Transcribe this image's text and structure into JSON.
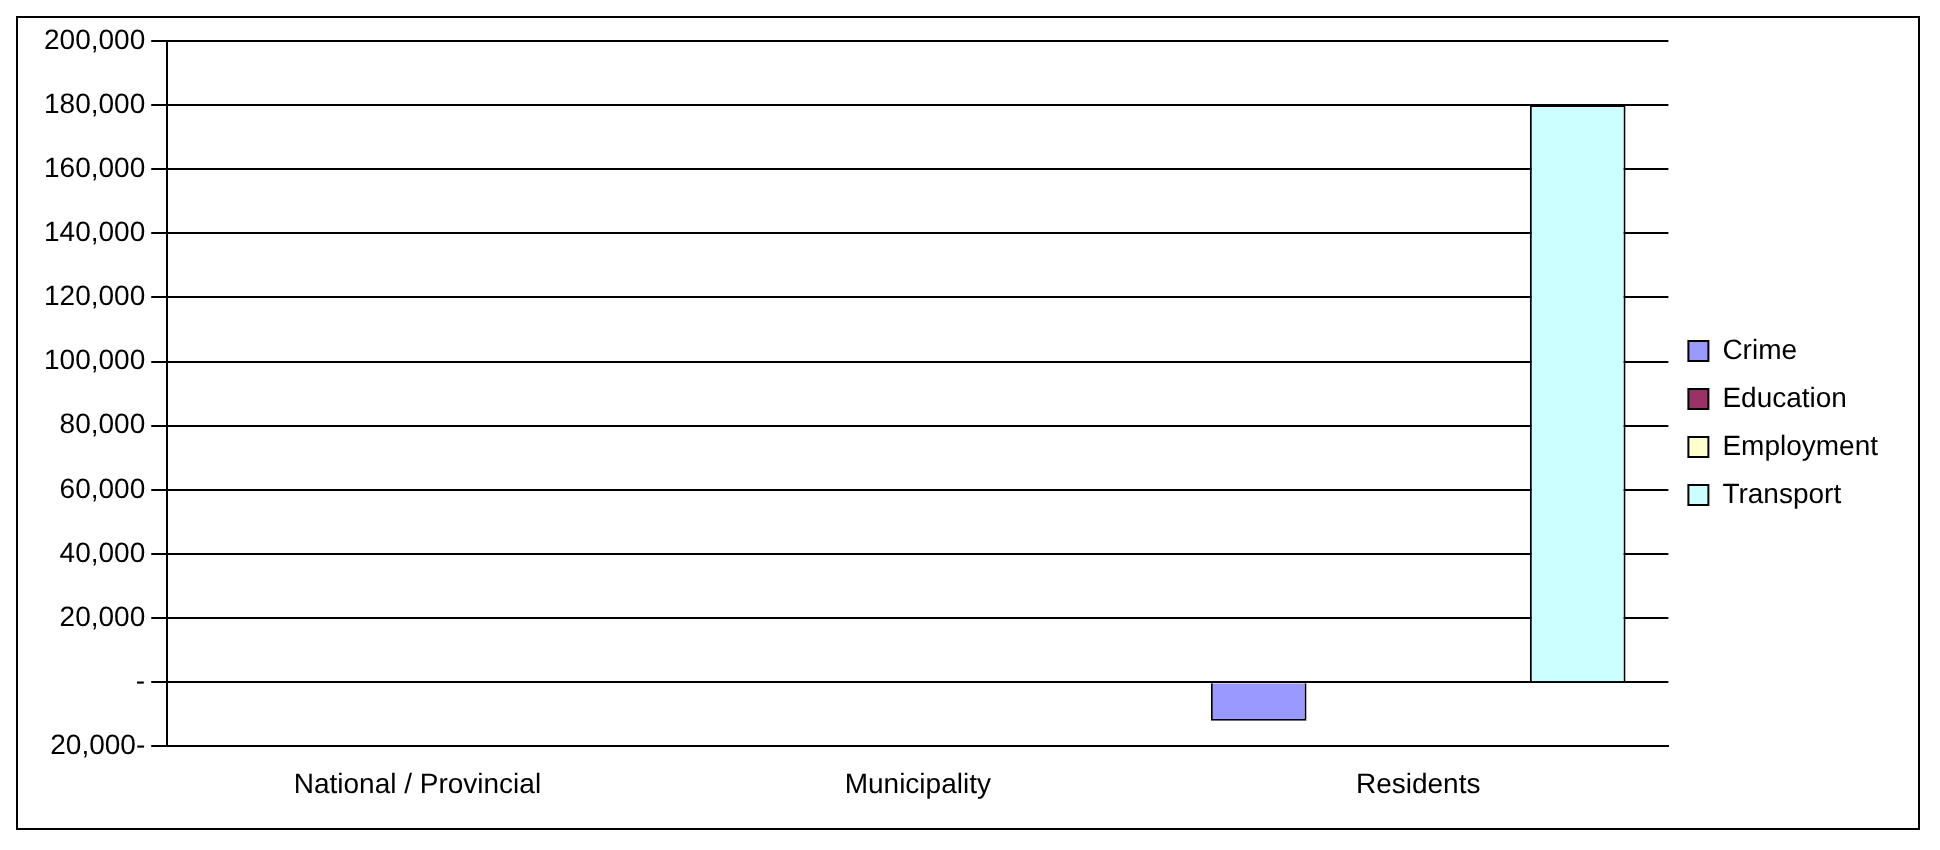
{
  "chart_data": {
    "type": "bar",
    "categories": [
      "National / Provincial",
      "Municipality",
      "Residents"
    ],
    "series": [
      {
        "name": "Crime",
        "color": "#9999ff",
        "values": [
          0,
          0,
          -12000
        ]
      },
      {
        "name": "Education",
        "color": "#993366",
        "values": [
          0,
          0,
          0
        ]
      },
      {
        "name": "Employment",
        "color": "#ffffcc",
        "values": [
          0,
          0,
          0
        ]
      },
      {
        "name": "Transport",
        "color": "#ccffff",
        "values": [
          0,
          0,
          180000
        ]
      }
    ],
    "ylim": [
      -20000,
      200000
    ],
    "yticks": [
      {
        "value": -20000,
        "label": "20,000-"
      },
      {
        "value": 0,
        "label": "-"
      },
      {
        "value": 20000,
        "label": "20,000"
      },
      {
        "value": 40000,
        "label": "40,000"
      },
      {
        "value": 60000,
        "label": "60,000"
      },
      {
        "value": 80000,
        "label": "80,000"
      },
      {
        "value": 100000,
        "label": "100,000"
      },
      {
        "value": 120000,
        "label": "120,000"
      },
      {
        "value": 140000,
        "label": "140,000"
      },
      {
        "value": 160000,
        "label": "160,000"
      },
      {
        "value": 180000,
        "label": "180,000"
      },
      {
        "value": 200000,
        "label": "200,000"
      }
    ],
    "grid": "y",
    "legend": "right"
  }
}
